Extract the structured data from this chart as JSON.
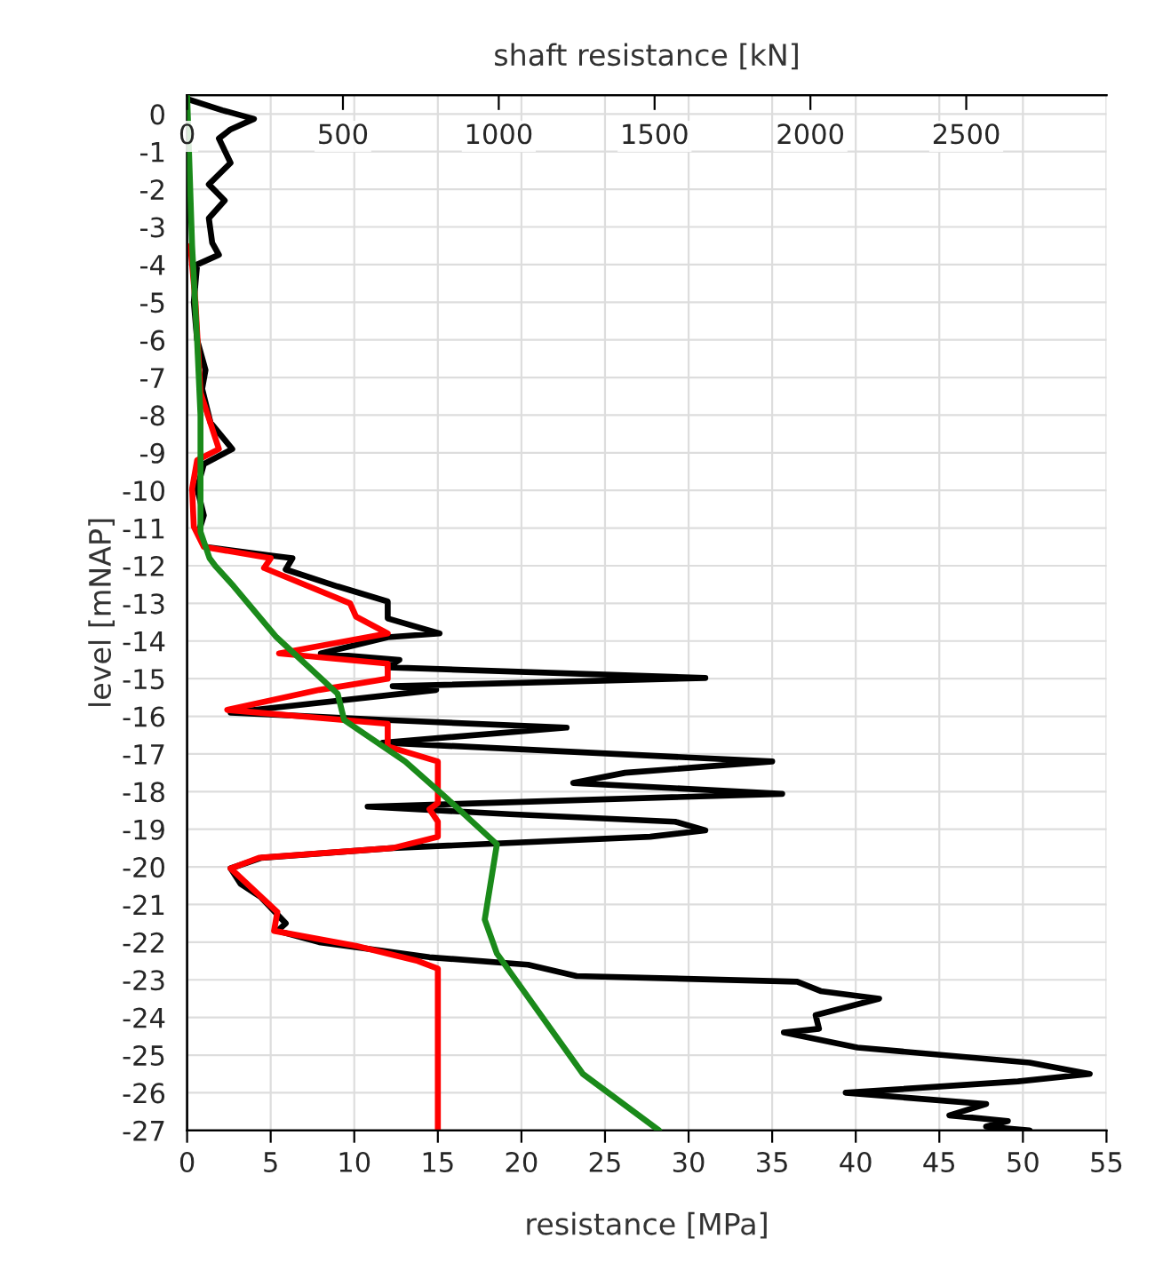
{
  "chart_data": {
    "type": "line",
    "xlabel": "resistance [MPa]",
    "ylabel": "level [mNAP]",
    "x2label": "shaft resistance [kN]",
    "xlim": [
      0,
      55
    ],
    "xticks": [
      0,
      5,
      10,
      15,
      20,
      25,
      30,
      35,
      40,
      45,
      50,
      55
    ],
    "ylim": [
      -27,
      0.5
    ],
    "yticks": [
      0,
      -1,
      -2,
      -3,
      -4,
      -5,
      -6,
      -7,
      -8,
      -9,
      -10,
      -11,
      -12,
      -13,
      -14,
      -15,
      -16,
      -17,
      -18,
      -19,
      -20,
      -21,
      -22,
      -23,
      -24,
      -25,
      -26,
      -27
    ],
    "x2lim": [
      0,
      2950
    ],
    "x2ticks": [
      0,
      500,
      1000,
      1500,
      2000,
      2500
    ],
    "grid": true,
    "legend": false,
    "marker": "none",
    "line_style": "solid",
    "series": [
      {
        "color": "#000000",
        "x": [
          0,
          2.1,
          4.0,
          2.6,
          1.9,
          2.6,
          1.3,
          2.25,
          1.3,
          1.5,
          1.9,
          0.6,
          0.4,
          0.6,
          1.1,
          0.9,
          1.4,
          2.7,
          1.0,
          0.6,
          1.0,
          0.7,
          1.1,
          5.0,
          6.3,
          5.9,
          9.0,
          12.0,
          12.0,
          15.1,
          12.0,
          8.0,
          12.7,
          12.0,
          31.0,
          12.3,
          14.9,
          2.6,
          12.0,
          22.7,
          11.7,
          35.0,
          26.2,
          23.1,
          35.6,
          10.8,
          19.3,
          29.2,
          31.0,
          27.7,
          12.3,
          4.45,
          2.6,
          3.2,
          4.4,
          5.9,
          5.4,
          7.9,
          14.5,
          20.4,
          23.3,
          36.5,
          37.9,
          41.4,
          37.6,
          37.8,
          35.7,
          40.1,
          50.4,
          54.0,
          49.7,
          39.4,
          47.8,
          45.6,
          49.1,
          47.8,
          50.4
        ],
        "values": [
          0.4,
          0.1,
          -0.13,
          -0.41,
          -0.65,
          -1.3,
          -1.87,
          -2.3,
          -2.77,
          -3.42,
          -3.74,
          -4.0,
          -5.0,
          -6.0,
          -6.8,
          -7.3,
          -8.2,
          -8.9,
          -9.3,
          -9.95,
          -10.66,
          -11.1,
          -11.5,
          -11.73,
          -11.8,
          -12.1,
          -12.55,
          -12.95,
          -13.4,
          -13.8,
          -13.9,
          -14.33,
          -14.5,
          -14.7,
          -14.98,
          -15.2,
          -15.3,
          -15.9,
          -16.1,
          -16.3,
          -16.7,
          -17.2,
          -17.5,
          -17.77,
          -18.06,
          -18.4,
          -18.6,
          -18.8,
          -19.03,
          -19.2,
          -19.5,
          -19.76,
          -20.04,
          -20.45,
          -20.8,
          -21.5,
          -21.7,
          -22.0,
          -22.4,
          -22.6,
          -22.9,
          -23.05,
          -23.3,
          -23.5,
          -23.94,
          -24.3,
          -24.4,
          -24.8,
          -25.2,
          -25.5,
          -25.7,
          -26.0,
          -26.3,
          -26.6,
          -26.75,
          -26.9,
          -27.0
        ]
      },
      {
        "color": "#ff0000",
        "x": [
          0.2,
          0.5,
          0.8,
          1.9,
          0.6,
          0.3,
          0.4,
          1.0,
          5.0,
          4.6,
          9.75,
          10.1,
          12.0,
          5.5,
          12.0,
          12.0,
          7.9,
          2.4,
          12.0,
          12.0,
          15.0,
          15.0,
          14.5,
          15.0,
          15.0,
          12.3,
          4.3,
          2.6,
          5.4,
          5.2,
          10.1,
          13.8,
          15.0,
          15.0
        ],
        "values": [
          -3.5,
          -5.0,
          -7.4,
          -8.9,
          -9.2,
          -9.95,
          -10.96,
          -11.5,
          -11.8,
          -12.06,
          -13.0,
          -13.35,
          -13.8,
          -14.33,
          -14.6,
          -15.0,
          -15.3,
          -15.83,
          -16.2,
          -16.8,
          -17.2,
          -18.3,
          -18.47,
          -18.8,
          -19.2,
          -19.5,
          -19.76,
          -20.04,
          -21.2,
          -21.7,
          -22.1,
          -22.5,
          -22.7,
          -27.0
        ]
      },
      {
        "color": "#1a8a1a",
        "axis": "x2",
        "x": [
          0,
          16,
          32,
          43,
          43,
          72,
          90,
          150,
          287,
          483,
          504,
          700,
          836,
          994,
          955,
          994,
          1270,
          1514
        ],
        "values": [
          0.5,
          -3.5,
          -6.0,
          -8.0,
          -11.1,
          -11.8,
          -12.0,
          -12.55,
          -13.9,
          -15.4,
          -16.1,
          -17.2,
          -18.2,
          -19.4,
          -21.4,
          -22.3,
          -25.5,
          -27.0
        ]
      }
    ]
  }
}
